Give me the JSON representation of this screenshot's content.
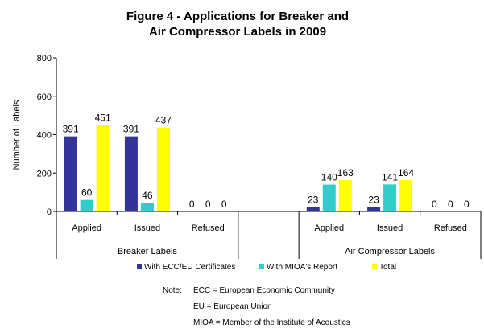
{
  "chart_data": {
    "type": "bar",
    "title": [
      "Figure 4 - Applications for Breaker and",
      "Air Compressor Labels in 2009"
    ],
    "ylabel": "Number of Labels",
    "ylim": [
      0,
      800
    ],
    "yticks": [
      "0",
      "200",
      "400",
      "600",
      "800"
    ],
    "groups": [
      {
        "name": "Breaker Labels",
        "categories": [
          "Applied",
          "Issued",
          "Refused"
        ]
      },
      {
        "name": "Air Compressor Labels",
        "categories": [
          "Applied",
          "Issued",
          "Refused"
        ]
      }
    ],
    "series": [
      {
        "name": "With ECC/EU  Certificates",
        "color": "#333399",
        "values": [
          391,
          391,
          0,
          23,
          23,
          0
        ]
      },
      {
        "name": "With MIOA's Report",
        "color": "#33CCCC",
        "values": [
          60,
          46,
          0,
          140,
          141,
          0
        ]
      },
      {
        "name": "Total",
        "color": "#FFFF00",
        "values": [
          451,
          437,
          0,
          163,
          164,
          0
        ]
      }
    ],
    "legend_position": "bottom",
    "grid": false
  },
  "notes": {
    "label": "Note:",
    "lines": [
      "ECC = European Economic Community",
      "EU = European Union",
      "MIOA = Member of the Institute of Acoustics"
    ]
  }
}
